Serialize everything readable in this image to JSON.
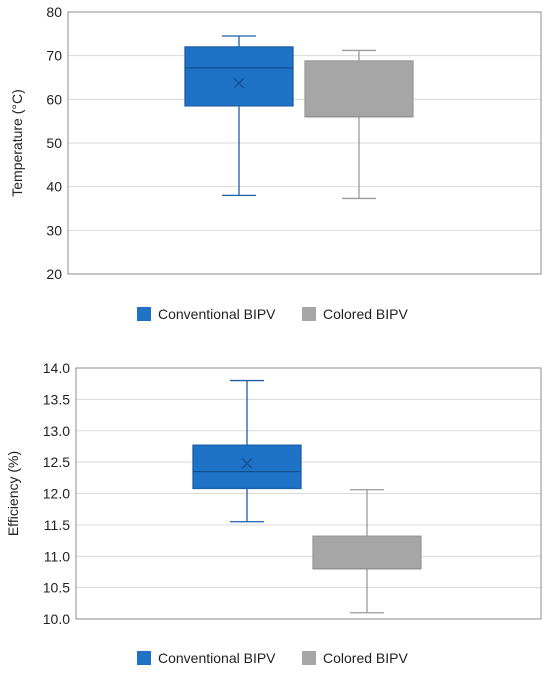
{
  "chart_data": [
    {
      "type": "boxplot",
      "title": "",
      "xlabel": "",
      "ylabel": "Temperature (°C)",
      "ylim": [
        20,
        80
      ],
      "yticks": [
        20,
        30,
        40,
        50,
        60,
        70,
        80
      ],
      "ytick_labels": [
        "20",
        "30",
        "40",
        "50",
        "60",
        "70",
        "80"
      ],
      "grid": true,
      "legend_position": "bottom",
      "series": [
        {
          "name": "Conventional BIPV",
          "color": "#1f73c6",
          "edge": "#1a5fa8",
          "whisker_low": 38,
          "q1": 58.5,
          "median": 67.2,
          "q3": 72,
          "whisker_high": 74.5,
          "mean": 63.7
        },
        {
          "name": "Colored BIPV",
          "color": "#a6a6a6",
          "edge": "#9a9a9a",
          "whisker_low": 37.3,
          "q1": 56,
          "median": 56,
          "q3": 68.8,
          "whisker_high": 71.2,
          "mean": null
        }
      ]
    },
    {
      "type": "boxplot",
      "title": "",
      "xlabel": "",
      "ylabel": "Efficiency (%)",
      "ylim": [
        10.0,
        14.0
      ],
      "yticks": [
        10.0,
        10.5,
        11.0,
        11.5,
        12.0,
        12.5,
        13.0,
        13.5,
        14.0
      ],
      "ytick_labels": [
        "10.0",
        "10.5",
        "11.0",
        "11.5",
        "12.0",
        "12.5",
        "13.0",
        "13.5",
        "14.0"
      ],
      "grid": true,
      "legend_position": "bottom",
      "series": [
        {
          "name": "Conventional BIPV",
          "color": "#1f73c6",
          "edge": "#1a5fa8",
          "whisker_low": 11.55,
          "q1": 12.08,
          "median": 12.35,
          "q3": 12.77,
          "whisker_high": 13.8,
          "mean": 12.48
        },
        {
          "name": "Colored BIPV",
          "color": "#a6a6a6",
          "edge": "#9a9a9a",
          "whisker_low": 10.1,
          "q1": 10.8,
          "median": 10.8,
          "q3": 11.32,
          "whisker_high": 12.06,
          "mean": null
        }
      ]
    }
  ]
}
